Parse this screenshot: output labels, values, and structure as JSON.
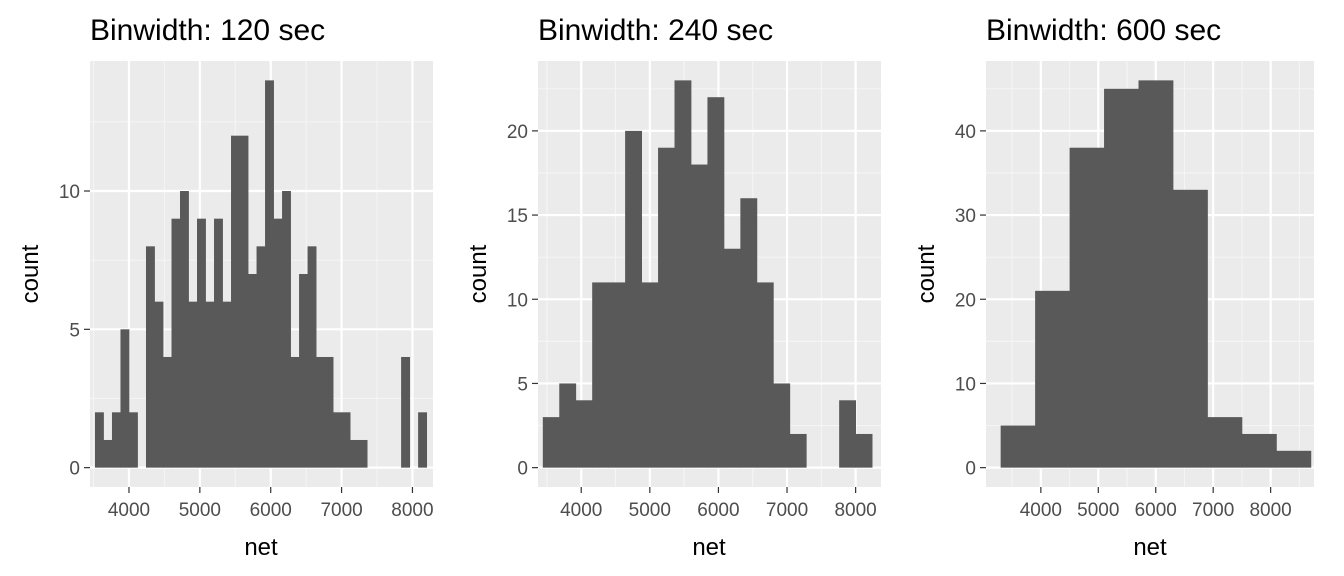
{
  "style": {
    "panel_background": "#ebebeb",
    "grid_major": "#ffffff",
    "grid_minor": "#f5f5f5",
    "bar_fill": "#595959",
    "tick_color": "#333333",
    "tick_label_color": "#4d4d4d"
  },
  "chart_data": [
    {
      "type": "bar",
      "title": "Binwidth: 120 sec",
      "xlabel": "net",
      "ylabel": "count",
      "binwidth": 120,
      "grid": true,
      "xlim": [
        3450,
        8290
      ],
      "ylim": [
        -0.7,
        14.7
      ],
      "xticks": [
        4000,
        5000,
        6000,
        7000,
        8000
      ],
      "yticks": [
        0,
        5,
        10
      ],
      "bins": [
        {
          "x0": 3520,
          "x1": 3640,
          "count": 2
        },
        {
          "x0": 3640,
          "x1": 3760,
          "count": 1
        },
        {
          "x0": 3760,
          "x1": 3880,
          "count": 2
        },
        {
          "x0": 3880,
          "x1": 4000,
          "count": 5
        },
        {
          "x0": 4000,
          "x1": 4120,
          "count": 2
        },
        {
          "x0": 4120,
          "x1": 4240,
          "count": 0
        },
        {
          "x0": 4240,
          "x1": 4360,
          "count": 8
        },
        {
          "x0": 4360,
          "x1": 4480,
          "count": 6
        },
        {
          "x0": 4480,
          "x1": 4600,
          "count": 4
        },
        {
          "x0": 4600,
          "x1": 4720,
          "count": 9
        },
        {
          "x0": 4720,
          "x1": 4840,
          "count": 10
        },
        {
          "x0": 4840,
          "x1": 4960,
          "count": 6
        },
        {
          "x0": 4960,
          "x1": 5080,
          "count": 9
        },
        {
          "x0": 5080,
          "x1": 5200,
          "count": 6
        },
        {
          "x0": 5200,
          "x1": 5320,
          "count": 9
        },
        {
          "x0": 5320,
          "x1": 5440,
          "count": 6
        },
        {
          "x0": 5440,
          "x1": 5560,
          "count": 12
        },
        {
          "x0": 5560,
          "x1": 5680,
          "count": 12
        },
        {
          "x0": 5680,
          "x1": 5800,
          "count": 7
        },
        {
          "x0": 5800,
          "x1": 5920,
          "count": 8
        },
        {
          "x0": 5920,
          "x1": 6040,
          "count": 14
        },
        {
          "x0": 6040,
          "x1": 6160,
          "count": 9
        },
        {
          "x0": 6160,
          "x1": 6280,
          "count": 10
        },
        {
          "x0": 6280,
          "x1": 6400,
          "count": 4
        },
        {
          "x0": 6400,
          "x1": 6520,
          "count": 7
        },
        {
          "x0": 6520,
          "x1": 6640,
          "count": 8
        },
        {
          "x0": 6640,
          "x1": 6760,
          "count": 4
        },
        {
          "x0": 6760,
          "x1": 6880,
          "count": 4
        },
        {
          "x0": 6880,
          "x1": 7000,
          "count": 2
        },
        {
          "x0": 7000,
          "x1": 7120,
          "count": 2
        },
        {
          "x0": 7120,
          "x1": 7240,
          "count": 1
        },
        {
          "x0": 7240,
          "x1": 7360,
          "count": 1
        },
        {
          "x0": 7840,
          "x1": 7960,
          "count": 4
        },
        {
          "x0": 7960,
          "x1": 8080,
          "count": 0
        },
        {
          "x0": 8080,
          "x1": 8200,
          "count": 2
        }
      ]
    },
    {
      "type": "bar",
      "title": "Binwidth: 240 sec",
      "xlabel": "net",
      "ylabel": "count",
      "binwidth": 240,
      "grid": true,
      "xlim": [
        3370,
        8370
      ],
      "ylim": [
        -1.15,
        24.15
      ],
      "xticks": [
        4000,
        5000,
        6000,
        7000,
        8000
      ],
      "yticks": [
        0,
        5,
        10,
        15,
        20
      ],
      "bins": [
        {
          "x0": 3440,
          "x1": 3680,
          "count": 3
        },
        {
          "x0": 3680,
          "x1": 3920,
          "count": 5
        },
        {
          "x0": 3920,
          "x1": 4160,
          "count": 4
        },
        {
          "x0": 4160,
          "x1": 4400,
          "count": 11
        },
        {
          "x0": 4400,
          "x1": 4640,
          "count": 11
        },
        {
          "x0": 4640,
          "x1": 4880,
          "count": 20
        },
        {
          "x0": 4880,
          "x1": 5120,
          "count": 11
        },
        {
          "x0": 5120,
          "x1": 5360,
          "count": 19
        },
        {
          "x0": 5360,
          "x1": 5600,
          "count": 23
        },
        {
          "x0": 5600,
          "x1": 5840,
          "count": 18
        },
        {
          "x0": 5840,
          "x1": 6080,
          "count": 22
        },
        {
          "x0": 6080,
          "x1": 6320,
          "count": 13
        },
        {
          "x0": 6320,
          "x1": 6560,
          "count": 16
        },
        {
          "x0": 6560,
          "x1": 6800,
          "count": 11
        },
        {
          "x0": 6800,
          "x1": 7040,
          "count": 5
        },
        {
          "x0": 7040,
          "x1": 7280,
          "count": 2
        },
        {
          "x0": 7760,
          "x1": 8000,
          "count": 4
        },
        {
          "x0": 8000,
          "x1": 8240,
          "count": 2
        }
      ]
    },
    {
      "type": "bar",
      "title": "Binwidth: 600 sec",
      "xlabel": "net",
      "ylabel": "count",
      "binwidth": 600,
      "grid": true,
      "xlim": [
        3045,
        8755
      ],
      "ylim": [
        -2.3,
        48.3
      ],
      "xticks": [
        4000,
        5000,
        6000,
        7000,
        8000
      ],
      "yticks": [
        0,
        10,
        20,
        30,
        40
      ],
      "bins": [
        {
          "x0": 3300,
          "x1": 3900,
          "count": 5
        },
        {
          "x0": 3900,
          "x1": 4500,
          "count": 21
        },
        {
          "x0": 4500,
          "x1": 5100,
          "count": 38
        },
        {
          "x0": 5100,
          "x1": 5700,
          "count": 45
        },
        {
          "x0": 5700,
          "x1": 6300,
          "count": 46
        },
        {
          "x0": 6300,
          "x1": 6900,
          "count": 33
        },
        {
          "x0": 6900,
          "x1": 7500,
          "count": 6
        },
        {
          "x0": 7500,
          "x1": 8100,
          "count": 4
        },
        {
          "x0": 8100,
          "x1": 8700,
          "count": 2
        }
      ]
    }
  ]
}
